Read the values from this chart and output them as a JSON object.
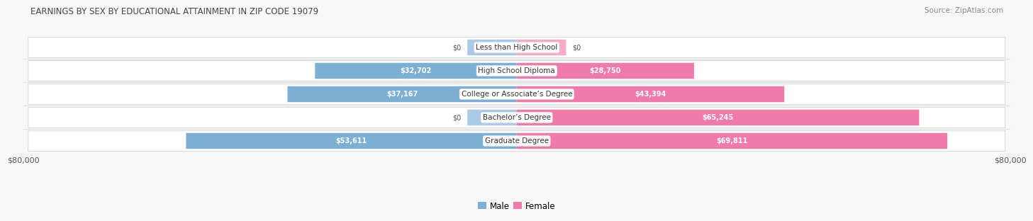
{
  "title": "EARNINGS BY SEX BY EDUCATIONAL ATTAINMENT IN ZIP CODE 19079",
  "source": "Source: ZipAtlas.com",
  "categories": [
    "Less than High School",
    "High School Diploma",
    "College or Associate’s Degree",
    "Bachelor’s Degree",
    "Graduate Degree"
  ],
  "male_values": [
    0,
    32702,
    37167,
    0,
    53611
  ],
  "female_values": [
    0,
    28750,
    43394,
    65245,
    69811
  ],
  "male_color": "#7bafd4",
  "female_color": "#f07aaa",
  "male_color_light": "#aac8e8",
  "female_color_light": "#f5aac8",
  "max_value": 80000,
  "bg_color": "#f8f8f8",
  "row_bg_color": "#efefef",
  "xlabel_left": "$80,000",
  "xlabel_right": "$80,000",
  "stub_value": 8000,
  "value_threshold_inside": 10000
}
